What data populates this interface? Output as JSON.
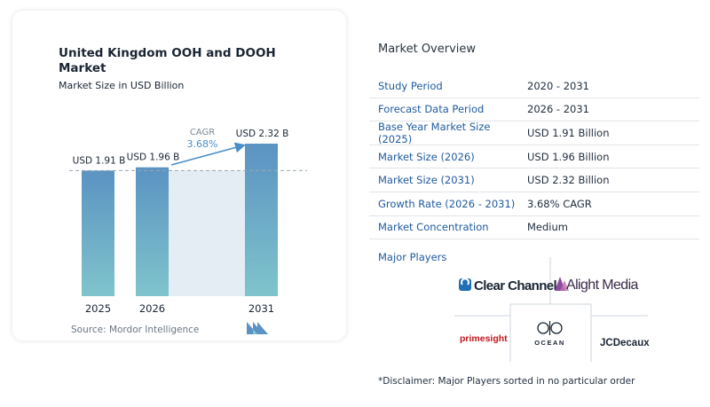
{
  "chart_data": {
    "type": "bar",
    "title": "United Kingdom OOH and DOOH Market",
    "subtitle": "Market Size in USD Billion",
    "categories": [
      "2025",
      "2026",
      "2031"
    ],
    "values": [
      1.91,
      1.96,
      2.32
    ],
    "data_labels": [
      "USD 1.91 B",
      "USD 1.96 B",
      "USD 2.32 B"
    ],
    "cagr_label": "CAGR",
    "cagr_value": "3.68%",
    "ylim": [
      0,
      2.32
    ],
    "colors": {
      "bar_top": "#5b93c2",
      "bar_bottom": "#7fc4cc",
      "band": "#e3edf3",
      "arrow": "#4a8fc9"
    }
  },
  "source": "Source: Mordor Intelligence",
  "overview": {
    "title": "Market Overview",
    "rows": [
      {
        "key": "Study Period",
        "value": "2020 - 2031"
      },
      {
        "key": "Forecast Data Period",
        "value": "2026 - 2031"
      },
      {
        "key": "Base Year Market Size (2025)",
        "value": "USD 1.91 Billion"
      },
      {
        "key": "Market Size (2026)",
        "value": "USD 1.96 Billion"
      },
      {
        "key": "Market Size (2031)",
        "value": "USD 2.32 Billion"
      },
      {
        "key": "Growth Rate (2026 - 2031)",
        "value": "3.68% CAGR"
      },
      {
        "key": "Market Concentration",
        "value": "Medium"
      }
    ]
  },
  "players": {
    "title": "Major Players",
    "logos": [
      "Clear Channel",
      "Alight Media",
      "primesight",
      "OCEAN",
      "JCDecaux"
    ]
  },
  "disclaimer": "*Disclaimer: Major Players sorted in no particular order"
}
